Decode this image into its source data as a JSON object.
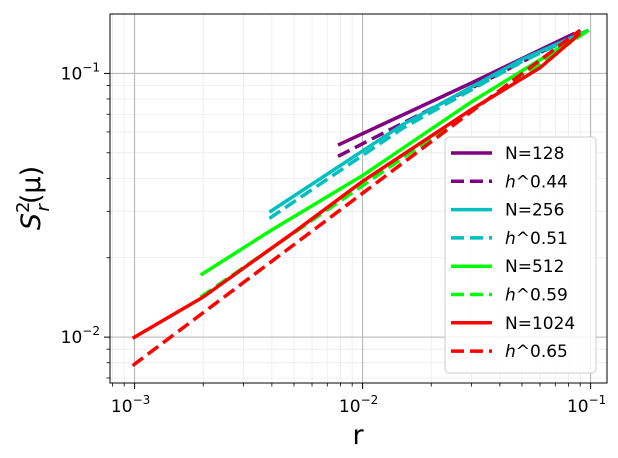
{
  "chart_data": {
    "type": "line",
    "xlabel": "r",
    "ylabel": "S",
    "ylabel_sup": "2",
    "ylabel_sub": "r",
    "ylabel_arg": "(μ)",
    "xscale": "log",
    "yscale": "log",
    "xlim": [
      0.00078,
      0.118
    ],
    "ylim": [
      0.0067,
      0.168
    ],
    "grid": true,
    "legend_position": "lower-right",
    "x_ticks": [
      {
        "value": 0.001,
        "base": "10",
        "exp": "−3"
      },
      {
        "value": 0.01,
        "base": "10",
        "exp": "−2"
      },
      {
        "value": 0.1,
        "base": "10",
        "exp": "−1"
      }
    ],
    "y_ticks": [
      {
        "value": 0.01,
        "base": "10",
        "exp": "−2"
      },
      {
        "value": 0.1,
        "base": "10",
        "exp": "−1"
      }
    ],
    "series": [
      {
        "name": "N=128",
        "color": "#800080",
        "style": "solid",
        "points": [
          [
            0.0078,
            0.0535
          ],
          [
            0.03,
            0.092
          ],
          [
            0.085,
            0.142
          ]
        ]
      },
      {
        "name": "h^0.44",
        "name_italic": "h",
        "name_rest": "^0.44",
        "color": "#800080",
        "style": "dashed",
        "points": [
          [
            0.0078,
            0.0485
          ],
          [
            0.03,
            0.088
          ],
          [
            0.085,
            0.14
          ]
        ]
      },
      {
        "name": "N=256",
        "color": "#00bfbf",
        "style": "solid",
        "points": [
          [
            0.0039,
            0.0298
          ],
          [
            0.015,
            0.064
          ],
          [
            0.05,
            0.113
          ],
          [
            0.098,
            0.146
          ]
        ]
      },
      {
        "name": "h^0.51",
        "name_italic": "h",
        "name_rest": "^0.51",
        "color": "#00bfbf",
        "style": "dashed",
        "points": [
          [
            0.0039,
            0.0282
          ],
          [
            0.015,
            0.062
          ],
          [
            0.05,
            0.111
          ],
          [
            0.098,
            0.146
          ]
        ]
      },
      {
        "name": "N=512",
        "color": "#00ff00",
        "style": "solid",
        "points": [
          [
            0.00195,
            0.0172
          ],
          [
            0.004,
            0.0255
          ],
          [
            0.01,
            0.041
          ],
          [
            0.03,
            0.078
          ],
          [
            0.098,
            0.146
          ]
        ]
      },
      {
        "name": "h^0.59",
        "name_italic": "h",
        "name_rest": "^0.59",
        "color": "#00ff00",
        "style": "dashed",
        "points": [
          [
            0.00195,
            0.0142
          ],
          [
            0.098,
            0.146
          ]
        ]
      },
      {
        "name": "N=1024",
        "color": "#ff0000",
        "style": "solid",
        "points": [
          [
            0.00098,
            0.0099
          ],
          [
            0.002,
            0.0142
          ],
          [
            0.005,
            0.025
          ],
          [
            0.01,
            0.039
          ],
          [
            0.03,
            0.073
          ],
          [
            0.06,
            0.105
          ],
          [
            0.09,
            0.142
          ]
        ]
      },
      {
        "name": "h^0.65",
        "name_italic": "h",
        "name_rest": "^0.65",
        "color": "#ff0000",
        "style": "dashed",
        "points": [
          [
            0.00098,
            0.0078
          ],
          [
            0.09,
            0.146
          ]
        ]
      }
    ]
  }
}
